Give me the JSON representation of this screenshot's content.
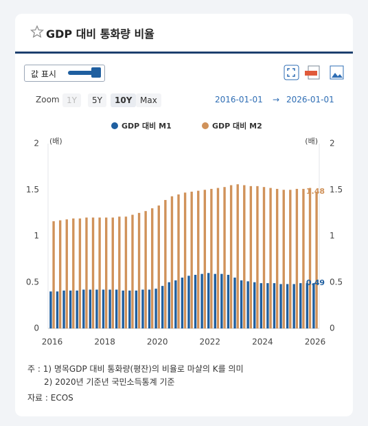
{
  "ui": {
    "title": "GDP 대비 통화량 비율",
    "toggle": "값 표시",
    "zoom_label": "Zoom",
    "zoom_options": [
      "1Y",
      "5Y",
      "10Y",
      "Max"
    ],
    "date_from": "2016-01-01",
    "date_arrow": "→",
    "date_to": "2026-01-01",
    "notes": [
      "주 : 1) 명목GDP 대비 통화량(평잔)의 비율로 마샬의 K를 의미",
      "2) 2020년 기준년 국민소득통계 기준"
    ],
    "source": "자료 : ECOS"
  },
  "chart_data": {
    "type": "bar",
    "y_unit": "(배)",
    "y2_unit": "(배)",
    "categories": [
      "2016",
      null,
      null,
      null,
      null,
      null,
      null,
      null,
      "2018",
      null,
      null,
      null,
      null,
      null,
      null,
      null,
      "2020",
      null,
      null,
      null,
      null,
      null,
      null,
      null,
      "2022",
      null,
      null,
      null,
      null,
      null,
      null,
      null,
      "2024",
      null,
      null,
      null,
      null,
      null,
      null,
      null,
      "2026"
    ],
    "series": [
      {
        "name": "GDP 대비 M1",
        "color": "#1f5fa0",
        "values": [
          0.4,
          0.4,
          0.41,
          0.41,
          0.41,
          0.42,
          0.42,
          0.42,
          0.42,
          0.42,
          0.42,
          0.41,
          0.41,
          0.41,
          0.42,
          0.42,
          0.43,
          0.46,
          0.5,
          0.52,
          0.55,
          0.57,
          0.58,
          0.59,
          0.6,
          0.59,
          0.59,
          0.58,
          0.55,
          0.52,
          0.51,
          0.5,
          0.49,
          0.49,
          0.49,
          0.48,
          0.48,
          0.48,
          0.49,
          0.49,
          0.49
        ]
      },
      {
        "name": "GDP 대비 M2",
        "color": "#d0925a",
        "values": [
          1.16,
          1.17,
          1.18,
          1.19,
          1.19,
          1.2,
          1.2,
          1.2,
          1.2,
          1.2,
          1.21,
          1.21,
          1.23,
          1.25,
          1.27,
          1.3,
          1.33,
          1.39,
          1.43,
          1.45,
          1.47,
          1.48,
          1.49,
          1.5,
          1.51,
          1.52,
          1.53,
          1.55,
          1.56,
          1.55,
          1.54,
          1.54,
          1.53,
          1.52,
          1.51,
          1.5,
          1.5,
          1.51,
          1.51,
          1.52,
          1.48
        ]
      }
    ],
    "ylim": [
      0,
      2
    ],
    "yticks": [
      0,
      0.5,
      1,
      1.5,
      2
    ],
    "y2lim": [
      0,
      2
    ],
    "y2ticks": [
      0,
      0.5,
      1,
      1.5,
      2
    ],
    "grid": false,
    "legend": "top"
  }
}
